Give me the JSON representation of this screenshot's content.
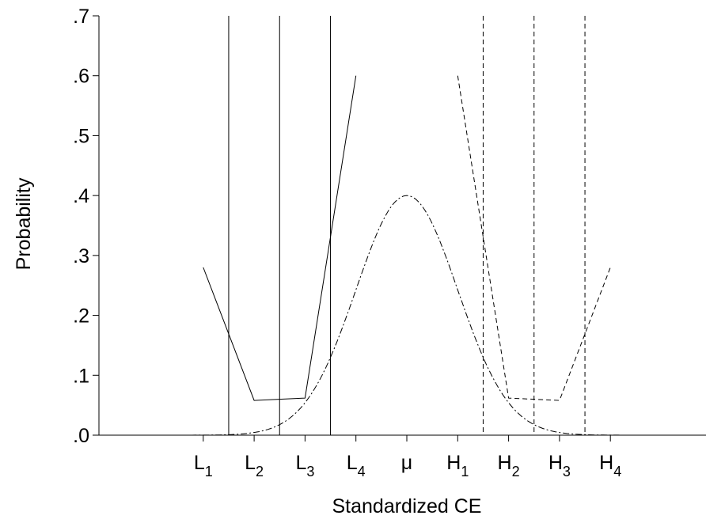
{
  "chart_data": {
    "type": "line",
    "title": "",
    "xlabel": "Standardized CE",
    "ylabel": "Probability",
    "ylim": [
      0,
      0.7
    ],
    "xlim": [
      -6,
      6
    ],
    "grid": false,
    "legend": "none",
    "y_ticks": [
      {
        "value": 0.0,
        "label": ".0"
      },
      {
        "value": 0.1,
        "label": ".1"
      },
      {
        "value": 0.2,
        "label": ".2"
      },
      {
        "value": 0.3,
        "label": ".3"
      },
      {
        "value": 0.4,
        "label": ".4"
      },
      {
        "value": 0.5,
        "label": ".5"
      },
      {
        "value": 0.6,
        "label": ".6"
      },
      {
        "value": 0.7,
        "label": ".7"
      }
    ],
    "x_ticks": [
      {
        "value": -4,
        "base": "L",
        "sub": "1"
      },
      {
        "value": -3,
        "base": "L",
        "sub": "2"
      },
      {
        "value": -2,
        "base": "L",
        "sub": "3"
      },
      {
        "value": -1,
        "base": "L",
        "sub": "4"
      },
      {
        "value": 0,
        "base": "μ",
        "sub": ""
      },
      {
        "value": 1,
        "base": "H",
        "sub": "1"
      },
      {
        "value": 2,
        "base": "H",
        "sub": "2"
      },
      {
        "value": 3,
        "base": "H",
        "sub": "3"
      },
      {
        "value": 4,
        "base": "H",
        "sub": "4"
      }
    ],
    "series": [
      {
        "style": "solid",
        "x": [
          -4,
          -3,
          -2,
          -1
        ],
        "y": [
          0.28,
          0.058,
          0.062,
          0.6
        ]
      },
      {
        "style": "dashed",
        "x": [
          1,
          2,
          3,
          4
        ],
        "y": [
          0.6,
          0.062,
          0.058,
          0.28
        ]
      },
      {
        "style": "dashdot",
        "curve": "normal-density",
        "mean": 0,
        "sd": 1,
        "scale": 0.4,
        "x_range": [
          -6,
          6
        ]
      }
    ],
    "vertical_lines": [
      {
        "x": -3.5,
        "style": "solid"
      },
      {
        "x": -2.5,
        "style": "solid"
      },
      {
        "x": -1.5,
        "style": "solid"
      },
      {
        "x": 1.5,
        "style": "dashed"
      },
      {
        "x": 2.5,
        "style": "dashed"
      },
      {
        "x": 3.5,
        "style": "dashed"
      }
    ]
  }
}
